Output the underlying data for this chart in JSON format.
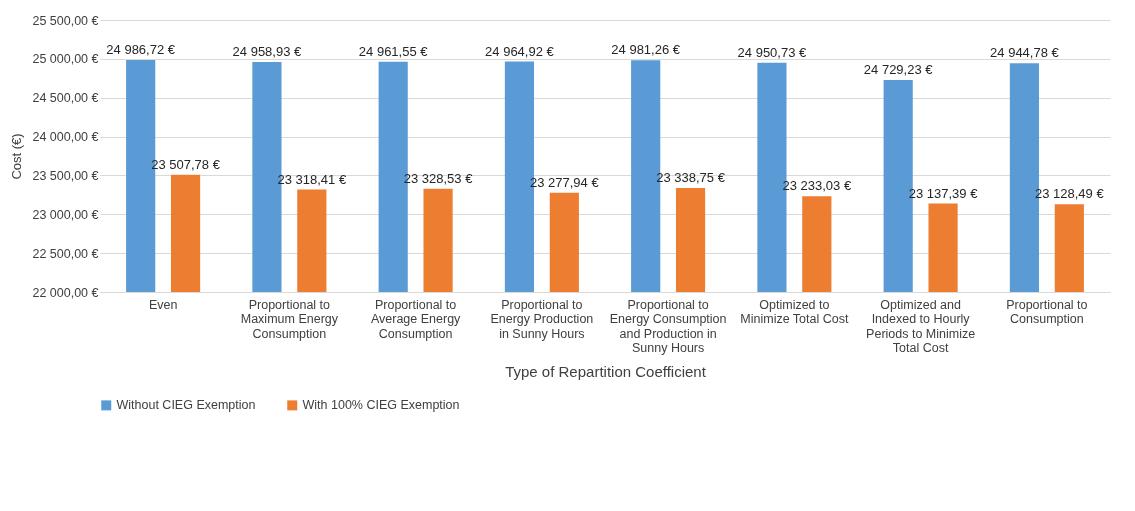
{
  "chart_data": {
    "type": "bar",
    "xlabel": "Type of Repartition Coefficient",
    "ylabel": "Cost (€)",
    "categories": [
      "Even",
      "Proportional to Maximum Energy Consumption",
      "Proportional to Average Energy Consumption",
      "Proportional to Energy Production in Sunny Hours",
      "Proportional to Energy Consumption and Production in Sunny Hours",
      "Optimized to Minimize Total Cost",
      "Optimized and Indexed to Hourly Periods  to Minimize Total Cost",
      "Proportional to Consumption"
    ],
    "series": [
      {
        "name": "Without CIEG Exemption",
        "color": "#5b9bd5",
        "values": [
          24986.72,
          24958.93,
          24961.55,
          24964.92,
          24981.26,
          24950.73,
          24729.23,
          24944.78
        ],
        "value_labels": [
          "24 986,72 €",
          "24 958,93 €",
          "24 961,55 €",
          "24 964,92 €",
          "24 981,26 €",
          "24 950,73 €",
          "24 729,23 €",
          "24 944,78 €"
        ]
      },
      {
        "name": "With 100% CIEG Exemption",
        "color": "#ed7d31",
        "values": [
          23507.78,
          23318.41,
          23328.53,
          23277.94,
          23338.75,
          23233.03,
          23137.39,
          23128.49
        ],
        "value_labels": [
          "23 507,78 €",
          "23 318,41 €",
          "23 328,53 €",
          "23 277,94 €",
          "23 338,75 €",
          "23 233,03 €",
          "23 137,39 €",
          "23 128,49 €"
        ]
      }
    ],
    "ylim": [
      22000,
      25500
    ],
    "yticks": [
      {
        "value": 22000,
        "label": "22 000,00 €"
      },
      {
        "value": 22500,
        "label": "22 500,00 €"
      },
      {
        "value": 23000,
        "label": "23 000,00 €"
      },
      {
        "value": 23500,
        "label": "23 500,00 €"
      },
      {
        "value": 24000,
        "label": "24 000,00 €"
      },
      {
        "value": 24500,
        "label": "24 500,00 €"
      },
      {
        "value": 25000,
        "label": "25 000,00 €"
      },
      {
        "value": 25500,
        "label": "25 500,00 €"
      }
    ],
    "grid": "y",
    "legend": "bottom"
  }
}
